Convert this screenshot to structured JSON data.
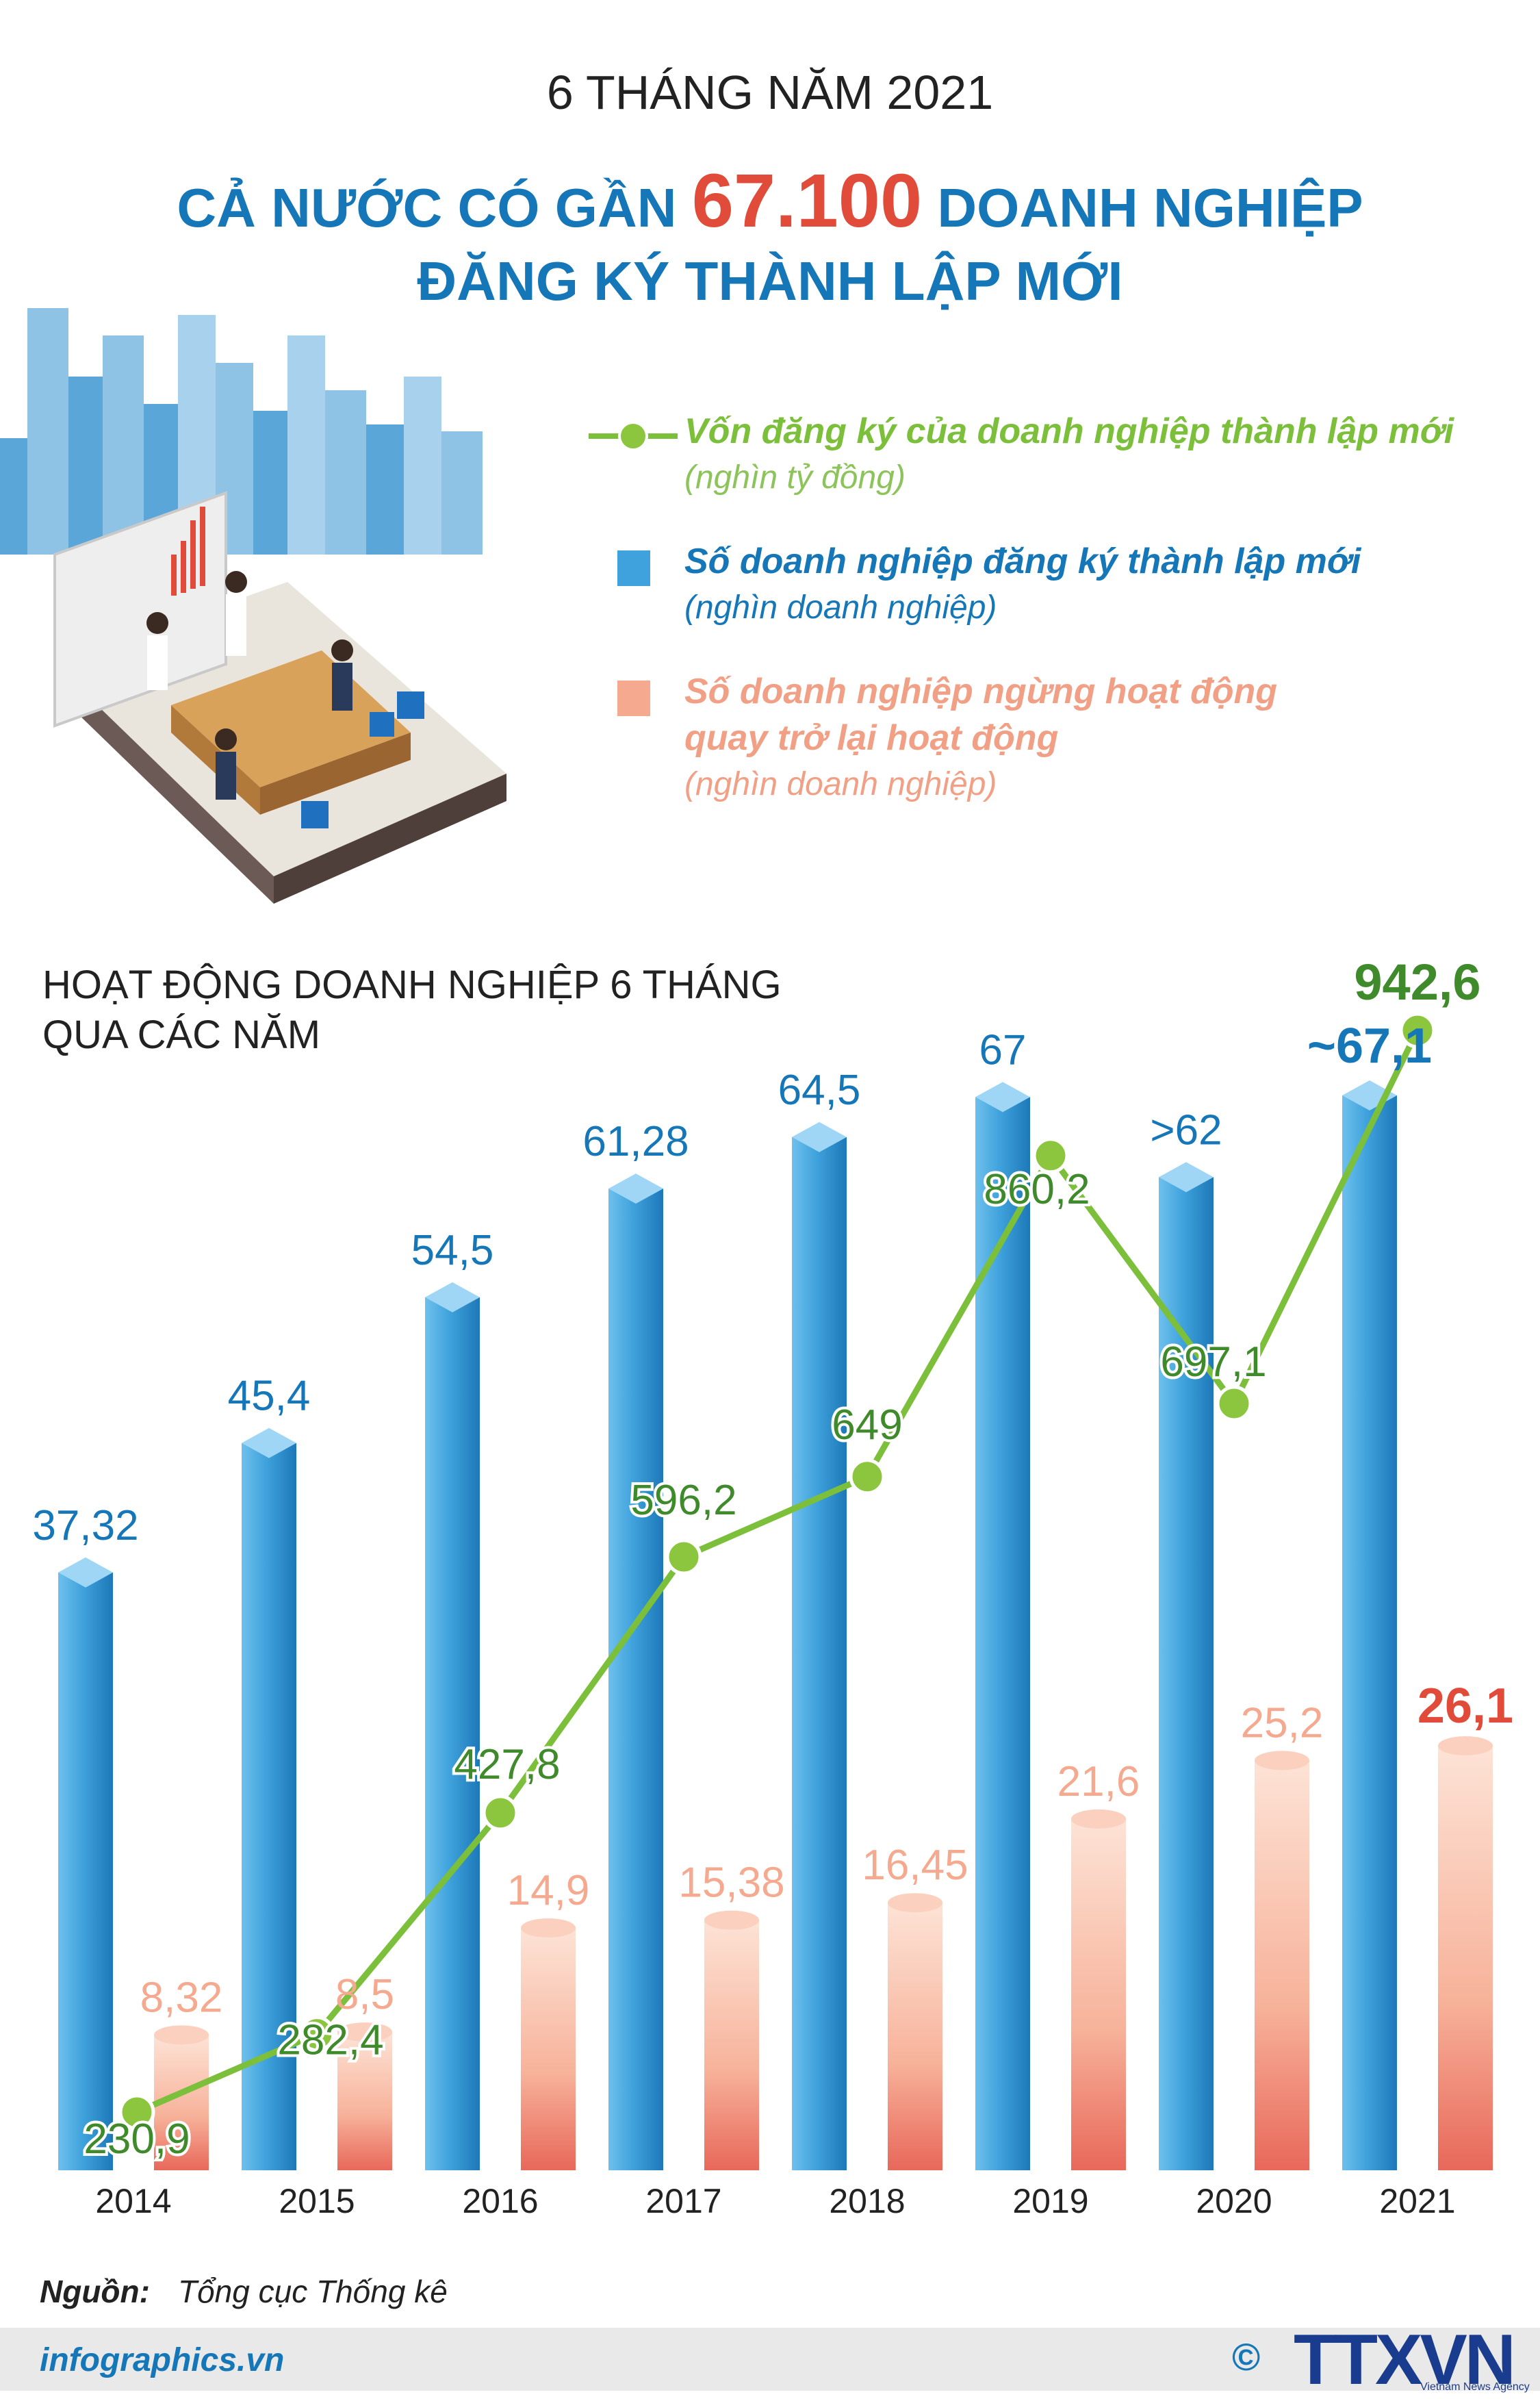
{
  "header": {
    "supertitle": "6 THÁNG NĂM 2021",
    "headline_pre": "CẢ NƯỚC CÓ GẦN ",
    "headline_number": "67.100",
    "headline_post": " DOANH NGHIỆP",
    "headline_line2": "ĐĂNG KÝ THÀNH LẬP MỚI"
  },
  "legend": {
    "line_title": "Vốn đăng ký của doanh nghiệp thành lập mới",
    "line_unit": "(nghìn tỷ đồng)",
    "blue_title": "Số doanh nghiệp đăng ký thành lập mới",
    "blue_unit": "(nghìn doanh nghiệp)",
    "pink_title_1": "Số doanh nghiệp ngừng hoạt động",
    "pink_title_2": "quay trở lại hoạt động",
    "pink_unit": "(nghìn doanh nghiệp)"
  },
  "colors": {
    "blue": "#3fa2dc",
    "blue_dark": "#1577b8",
    "pink": "#f5a98f",
    "pink_dark": "#e04b3a",
    "green": "#7cbf3a",
    "green_dark": "#3f8a2a"
  },
  "chart_data": {
    "type": "bar",
    "title_line1": "HOẠT ĐỘNG DOANH NGHIỆP 6 THÁNG",
    "title_line2": "QUA CÁC NĂM",
    "categories": [
      "2014",
      "2015",
      "2016",
      "2017",
      "2018",
      "2019",
      "2020",
      "2021"
    ],
    "series": [
      {
        "name": "Số doanh nghiệp đăng ký thành lập mới",
        "kind": "bar",
        "values": [
          37.32,
          45.4,
          54.5,
          61.28,
          64.5,
          67,
          62,
          67.1
        ],
        "labels": [
          "37,32",
          "45,4",
          "54,5",
          "61,28",
          "64,5",
          "67",
          ">62",
          "~67,1"
        ]
      },
      {
        "name": "Số doanh nghiệp ngừng hoạt động quay trở lại hoạt động",
        "kind": "bar",
        "values": [
          8.32,
          8.5,
          14.9,
          15.38,
          16.45,
          21.6,
          25.2,
          26.1
        ],
        "labels": [
          "8,32",
          "8,5",
          "14,9",
          "15,38",
          "16,45",
          "21,6",
          "25,2",
          "26,1"
        ]
      },
      {
        "name": "Vốn đăng ký của doanh nghiệp thành lập mới",
        "kind": "line",
        "values": [
          230.9,
          282.4,
          427.8,
          596.2,
          649,
          860.2,
          697.1,
          942.6
        ],
        "labels": [
          "230,9",
          "282,4",
          "427,8",
          "596,2",
          "649",
          "860,2",
          "697,1",
          "942,6"
        ]
      }
    ]
  },
  "footer": {
    "source_label": "Nguồn:",
    "source_text": "Tổng cục Thống kê",
    "site": "infographics.vn",
    "copyright": "©",
    "agency": "TTXVN",
    "agency_sub": "Vietnam News Agency"
  }
}
